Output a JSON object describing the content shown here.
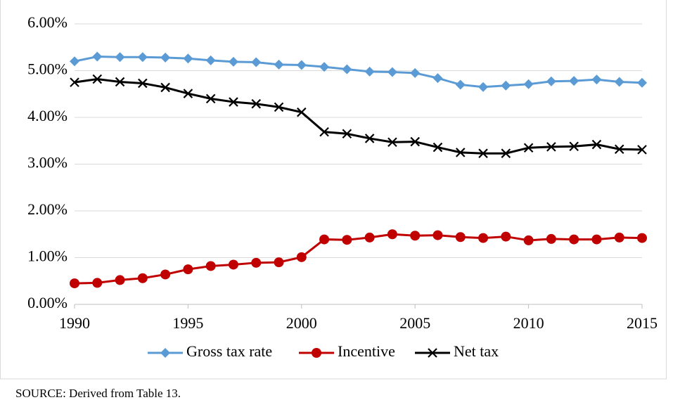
{
  "chart_data": {
    "type": "line",
    "x": [
      1990,
      1991,
      1992,
      1993,
      1994,
      1995,
      1996,
      1997,
      1998,
      1999,
      2000,
      2001,
      2002,
      2003,
      2004,
      2005,
      2006,
      2007,
      2008,
      2009,
      2010,
      2011,
      2012,
      2013,
      2014,
      2015
    ],
    "series": [
      {
        "name": "Gross tax rate",
        "color": "#5b9bd5",
        "marker": "diamond",
        "values": [
          5.2,
          5.3,
          5.29,
          5.29,
          5.28,
          5.26,
          5.22,
          5.19,
          5.18,
          5.13,
          5.12,
          5.08,
          5.03,
          4.98,
          4.97,
          4.95,
          4.84,
          4.7,
          4.65,
          4.68,
          4.71,
          4.77,
          4.78,
          4.81,
          4.76,
          4.74
        ]
      },
      {
        "name": "Incentive",
        "color": "#c00000",
        "marker": "circle",
        "values": [
          0.45,
          0.46,
          0.52,
          0.56,
          0.64,
          0.75,
          0.82,
          0.85,
          0.89,
          0.9,
          1.01,
          1.39,
          1.38,
          1.43,
          1.5,
          1.47,
          1.48,
          1.44,
          1.42,
          1.45,
          1.37,
          1.4,
          1.39,
          1.39,
          1.43,
          1.42
        ]
      },
      {
        "name": "Net tax",
        "color": "#000000",
        "marker": "x",
        "values": [
          4.75,
          4.82,
          4.76,
          4.73,
          4.64,
          4.51,
          4.4,
          4.33,
          4.29,
          4.22,
          4.11,
          3.69,
          3.65,
          3.55,
          3.47,
          3.48,
          3.36,
          3.25,
          3.23,
          3.23,
          3.35,
          3.37,
          3.38,
          3.42,
          3.32,
          3.31
        ]
      }
    ],
    "xlim": [
      1990,
      2015
    ],
    "xticks": [
      1990,
      1995,
      2000,
      2005,
      2010,
      2015
    ],
    "ylim": [
      0,
      6
    ],
    "yticks": [
      {
        "value": 0,
        "label": "0.00%"
      },
      {
        "value": 1,
        "label": "1.00%"
      },
      {
        "value": 2,
        "label": "2.00%"
      },
      {
        "value": 3,
        "label": "3.00%"
      },
      {
        "value": 4,
        "label": "4.00%"
      },
      {
        "value": 5,
        "label": "5.00%"
      },
      {
        "value": 6,
        "label": "6.00%"
      }
    ],
    "grid": true,
    "legend": "bottom",
    "source": "SOURCE: Derived from Table 13."
  }
}
